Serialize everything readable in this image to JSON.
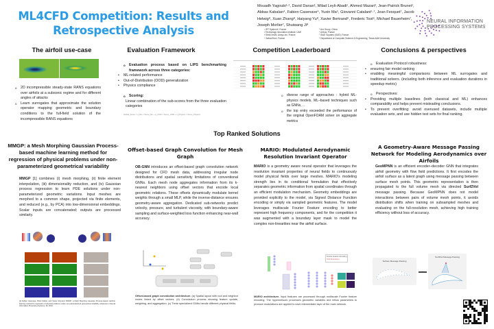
{
  "header": {
    "title": "ML4CFD Competition: Results and Retrospective Analysis",
    "authors": "Mouadh Yagoubi¹·², David Danan¹, Milad Leyli-Abadi¹, Ahmed Mazari³, Jean-Patrick Brunet¹, Abbas Kabalan⁴, Fabien Casenave⁴, Yuxin Ma⁵, Giovanni Catalani⁶·⁷, Jean Fesquet⁷, Jacob Helwig⁸, Xuan Zhang⁸, Haiyang Yu⁸, Xavier Bertrand⁶, Frederic Tost⁶, Michael Bauerheim⁷, Joseph Morlier⁷, Shuiwang Ji⁸",
    "affiliations": [
      "¹ IRT SystemX, France",
      "⁵ Ant Group, China",
      "² Technology Innovation Institute, UAE",
      "⁶ Airbus, France",
      "³ SimAI team, Ansys Inc, France",
      "⁷ ISAE Supaero (SAE), France",
      "⁴ SafranTech, France",
      "⁸ Department of Computer Science & Engineering, Texas A&M University"
    ],
    "logo_text": "NEURAL INFORMATION PROCESSING SYSTEMS",
    "accent": "#2b9be3"
  },
  "airfoil": {
    "heading": "The airfoil use-case",
    "bullets": [
      "2D incompressible steady-state RANS equations over airfoils at a subsonic regime and for different angles of attacks",
      "Learn surrogates that approximate the solution operator mapping geometric and boundary conditions to the full-field solution of the incompressible RANS equations"
    ]
  },
  "evaluation": {
    "heading": "Evaluation Framework",
    "intro": "Evaluation process based on LIPS benchmarking framework across three categories:",
    "categories": [
      "ML-related performance",
      "Out-of-Distribution (OOD) generalization",
      "Physics compliance"
    ],
    "scoring_label": "Scoring:",
    "scoring_text": "Linear combination of the sub-scores from the three evaluation categories",
    "formula": "Global_Score = α_ML × Score_ML + α_OOD × Score_OOD + α_Physics × Score_Physics"
  },
  "leaderboard": {
    "heading": "Competition Leaderboard",
    "bullets": [
      "diverse range of approaches : hybrid ML-physics models, ML–based techniques such as GNNs, ..",
      "the top entry exceeded the performance of the original OpenFOAM solver on aggregate metrics"
    ]
  },
  "conclusions": {
    "heading": "Conclusions & perspectives",
    "robustness": "Evaluation Protocol robustness:",
    "robustness_items": [
      "ensuring fair model ranking",
      "enabling meaningful comparisons between ML surrogates and traditional solvers. (including both inference and evaluation durations in speedup metric)"
    ],
    "perspectives": "Perspectives:",
    "perspective_items": [
      "Providing multiple baselines (both classical and ML) enhances comparability and helps prevent misleading conclusions.",
      "To prevent overfitting: avoid overused datasets, include multiple evaluation sets, and use hidden test sets for final ranking."
    ]
  },
  "top_ranked": {
    "heading": "Top Ranked Solutions"
  },
  "mmgp": {
    "title": "MMGP: a Mesh Morphing Gaussian Process-based machine learning method for regression of physical problems under non-parameterized geometrical variability",
    "lead": "MMGP",
    "text": " [1] combines (i) mesh morphing, (ii) finite element interpolation, (iii) dimensionality reduction, and (iv) Gaussian process regression to learn PDE solutions under non-parameterized geometric variations. Input meshes are morphed to a common shape, projected via finite elements, and reduced (e.g., by PCA) into low-dimensional embeddings. Scalar inputs are concatenated; outputs are processed similarly.",
    "reference": "[1] Fabien Casenave, Brian Staber, and Xavier Roynard. MMGP: a Mesh Morphing Gaussian Process-based machine learning method for regression of physical problems under non-parameterized geometrical variability. Advances in Neural Information Processing Systems, 36, 2024."
  },
  "obgnn": {
    "title": "Offset-based Graph Convolution for Mesh Graph",
    "lead": "OB-GNN",
    "text": " introduces an offset-based graph convolution network designed for CFD mesh data, addressing irregular node distributions and spatial sensitivity limitations of conventional GNNs. Each mesh node aggregates information from its k-nearest neighbors using offset vectors that encode local geometric relations. These offsets dynamically modulate kernel weights through a small MLP, while the inverse-distance ensures geometry-aware aggregation. Dedicated sub-networks predict velocity, pressure, and turbulent viscosity, with boundary-aware sampling and surface-weighted loss function enhancing near-wall accuracy.",
    "caption_lead": "Offset-based graph convolution architecture.",
    "caption": " (a) Spatial layout with root and neighbor nodes linked by offset vectors. (b) Convolution process showing feature update, weighting, and aggregation. (c) Three specialized GNNs handle different physical fields."
  },
  "mario": {
    "title": "MARIO: Modulated Aerodynamic Resolution Invariant Operator",
    "lead": "MARIO",
    "text": " is a geometry aware neural operator that leverages the resolution invariant properties of neural fields to continuously model physical fields over large meshes. MARIO's modeling strength lies in its conditional formulation that effectively separates geometric information from spatial coordinates through an efficient modulation mechanism. Geometry embeddings are provided explicitly to the model, via Signed Distance Function encoding or simply via sampled geometric features. The model leverages multiscale Fourier Feature encoding to better represent high frequency components, and for the competition it was augmented with a boundary layer mask to model the complex non-linearities near the airfoil surface.",
    "legend": [
      "Fourier Feature Encoding",
      "Shift Modulation"
    ],
    "caption_lead": "MARIO architecture.",
    "caption": " Input features are processed through multiscale Fourier feature encoding. The hypernetwork processes geometric variables and inflow parameters to produce modulations are applied to each intermediate layer of the main network."
  },
  "geompnn": {
    "title": "A Geometry-Aware Message Passing Network for Modeling Aerodynamics over Airfoils",
    "lead": "GeoMPNN",
    "text_a": " is an efficient encoder–decoder GNN that integrates airfoil geometry with flow field predictions. It first encodes the airfoil surface as a latent graph using message passing between surface mesh points. This geometric representation is then propagated to the full volume mesh via directed ",
    "bold_mid": "Surf2Vol",
    "text_b": " message passing. Because GeoMPNN does not model interactions between pairs of volume mesh points, it avoids distribution shifts when training on subsampled meshes and evaluating on the full-resolution mesh, achieving high training efficiency without loss of accuracy.",
    "fig_left": "Surface Message Passing",
    "fig_right": "Surf2Vol Message Passing"
  }
}
